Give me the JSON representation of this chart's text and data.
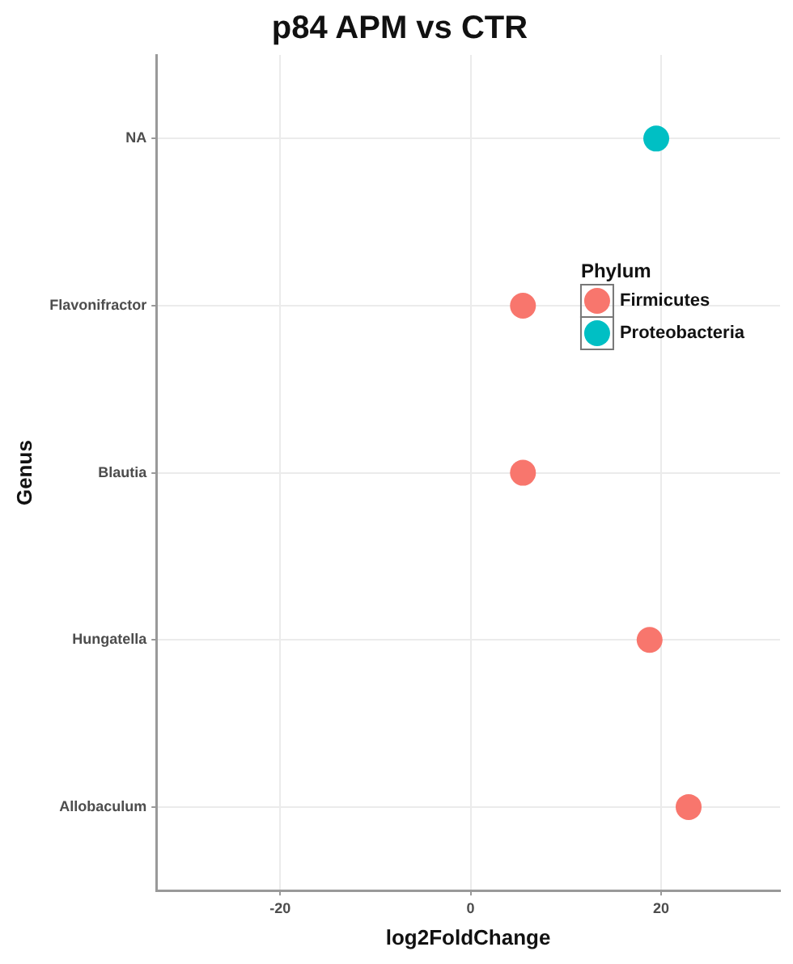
{
  "chart_data": {
    "type": "scatter",
    "orientation": "horizontal",
    "title": "p84 APM vs CTR",
    "xlabel": "log2FoldChange",
    "ylabel": "Genus",
    "legend_title": "Phylum",
    "categories": [
      "NA",
      "Flavonifractor",
      "Blautia",
      "Hungatella",
      "Allobaculum"
    ],
    "series": [
      {
        "name": "Firmicutes",
        "color": "#f8766d",
        "values": [
          null,
          5.5,
          5.5,
          18.8,
          22.9
        ]
      },
      {
        "name": "Proteobacteria",
        "color": "#00bfc4",
        "values": [
          19.5,
          null,
          null,
          null,
          null
        ]
      }
    ],
    "xlim": [
      -33,
      32.5
    ],
    "xticks": [
      -20,
      0,
      20
    ],
    "grid": true,
    "legend": "top right",
    "marker": "circle"
  }
}
